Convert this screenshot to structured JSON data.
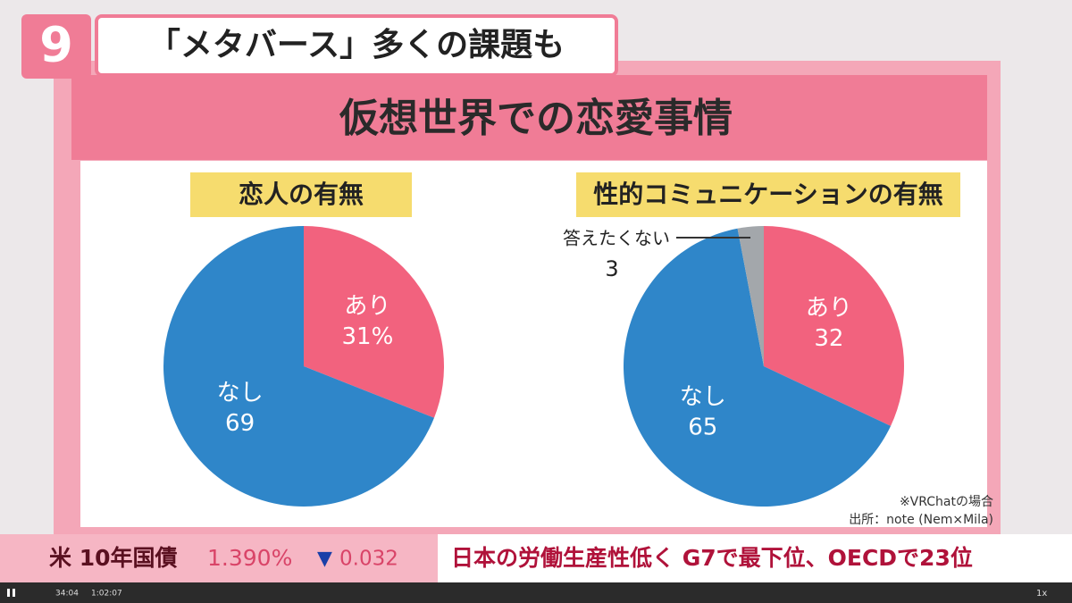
{
  "logo": "9",
  "headline": "「メタバース」多くの課題も",
  "board_title": "仮想世界での恋愛事情",
  "chart_data": [
    {
      "type": "pie",
      "title": "恋人の有無",
      "categories": [
        "あり",
        "なし"
      ],
      "values": [
        31,
        69
      ],
      "value_labels": [
        "31%",
        "69"
      ],
      "colors": [
        "#f2627e",
        "#2f86c9"
      ]
    },
    {
      "type": "pie",
      "title": "性的コミュニケーションの有無",
      "categories": [
        "あり",
        "なし",
        "答えたくない"
      ],
      "values": [
        32,
        65,
        3
      ],
      "colors": [
        "#f2627e",
        "#2f86c9",
        "#a3a7ab"
      ]
    }
  ],
  "notes": [
    "※VRChatの場合",
    "出所：note (Nem×Mila)"
  ],
  "ticker": {
    "label": "米 10年国債",
    "rate": "1.390%",
    "arrow": "▼",
    "change": "0.032",
    "news": "日本の労働生産性低く G7で最下位、OECDで23位"
  },
  "player": {
    "current": "34:04",
    "duration": "1:02:07",
    "speed": "1x"
  }
}
